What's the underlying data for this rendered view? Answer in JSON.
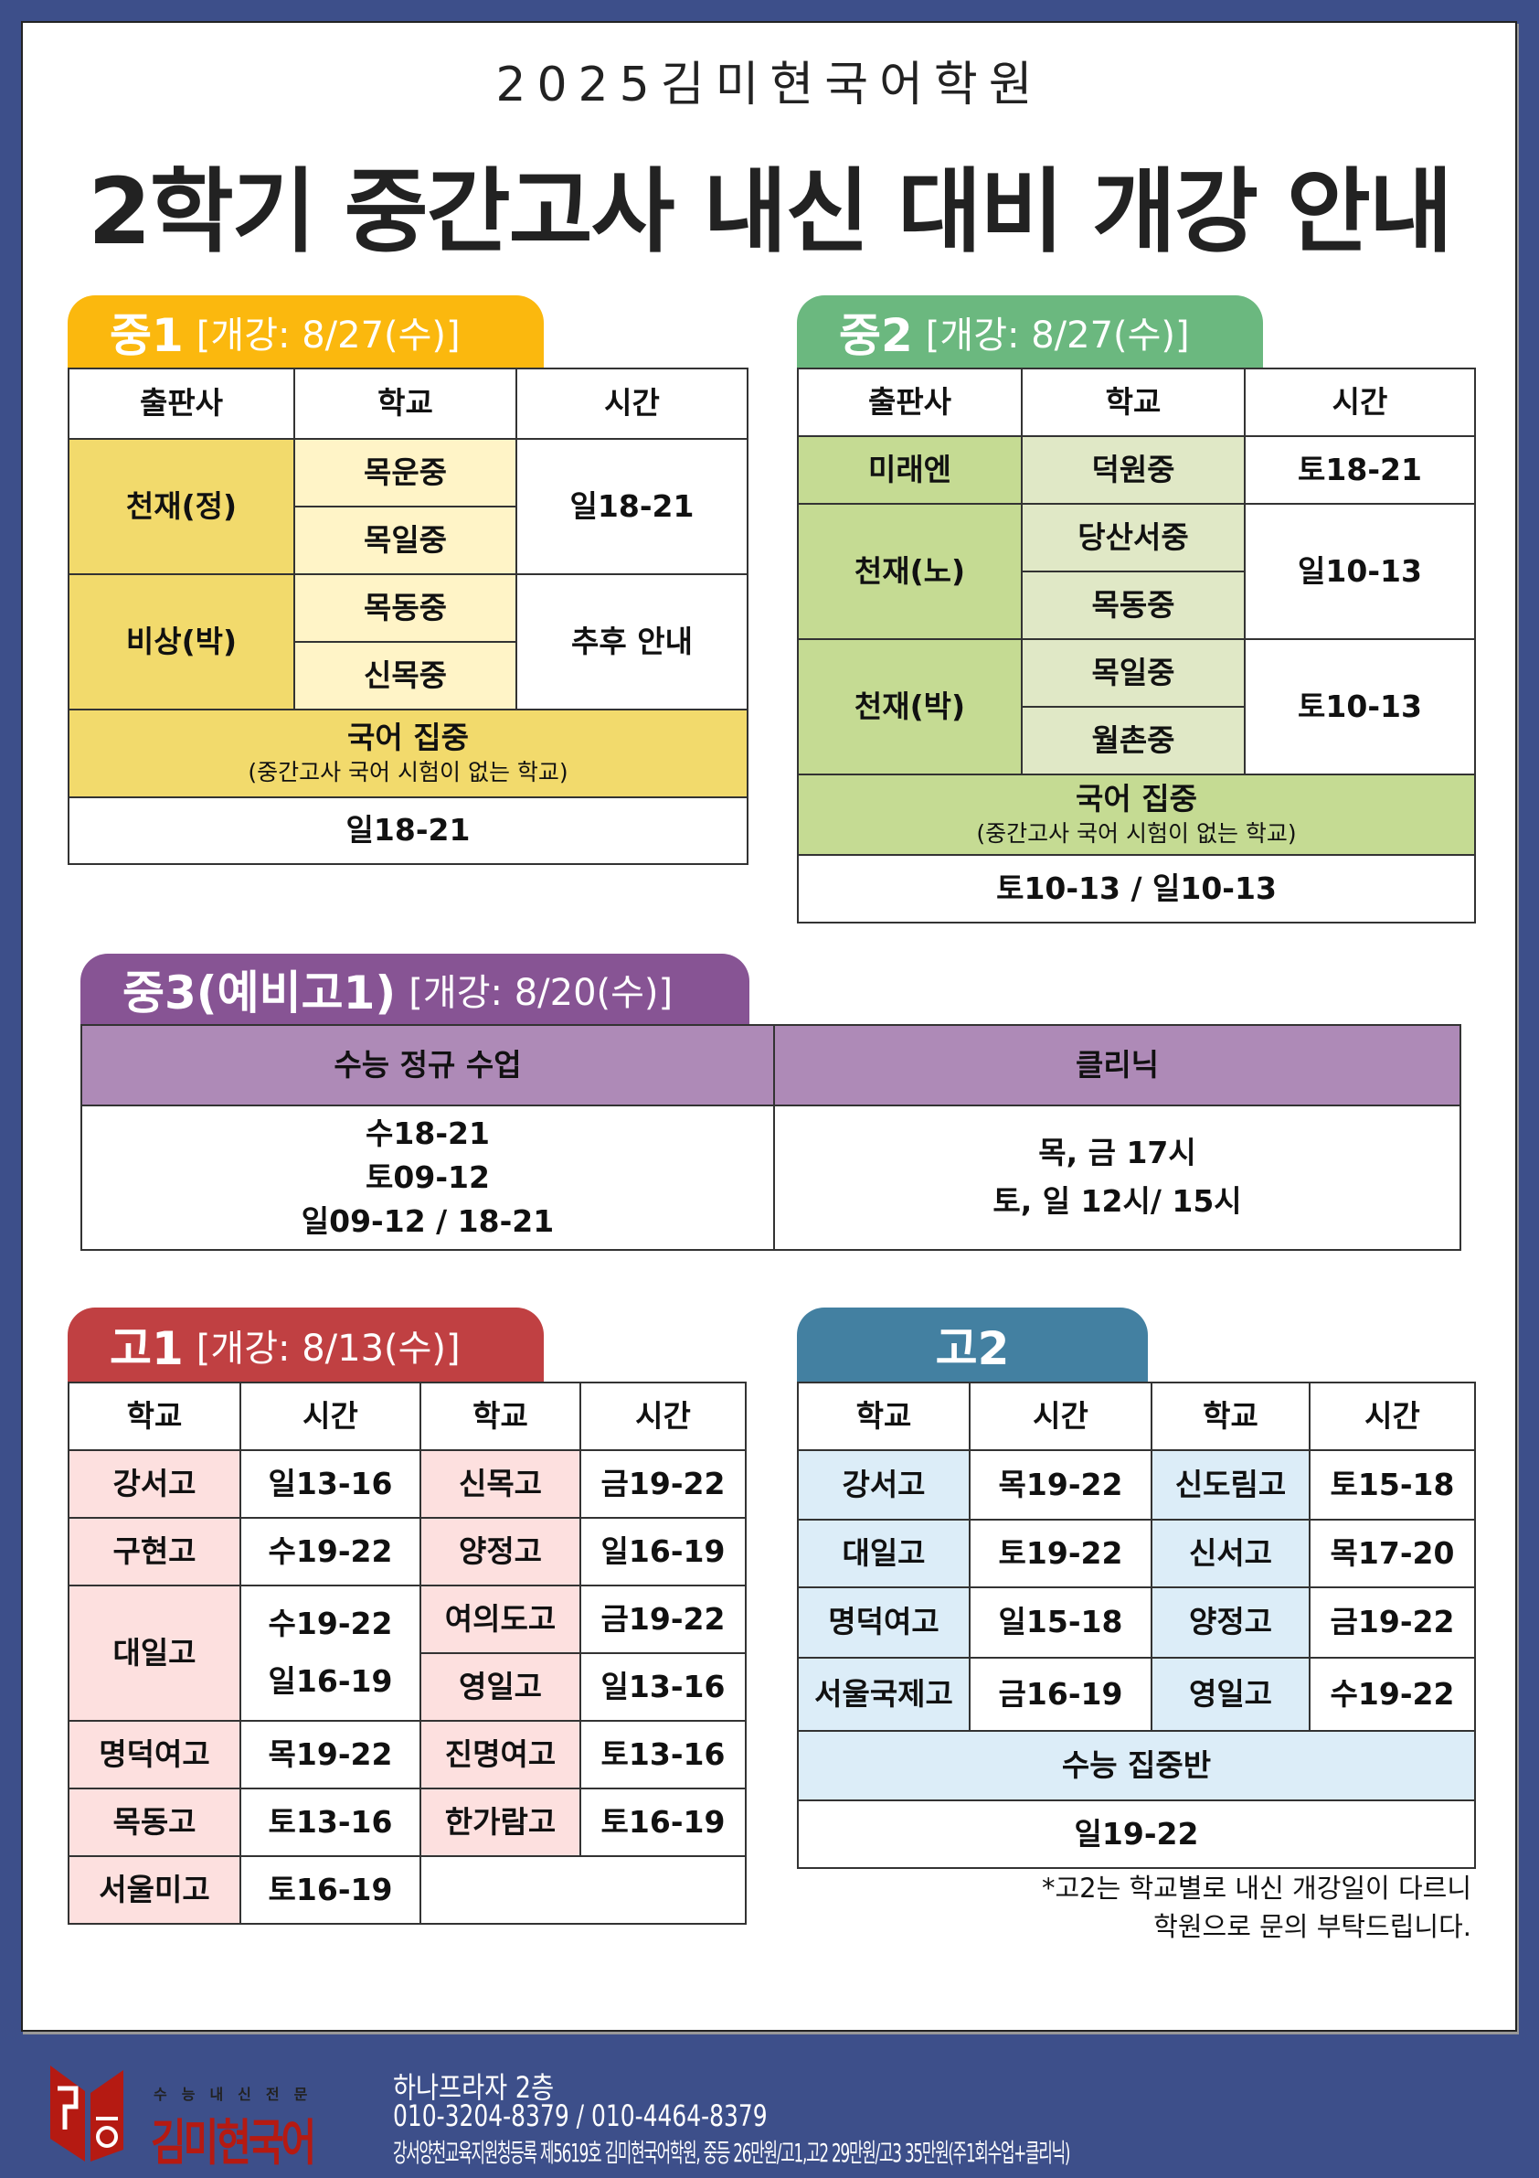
{
  "header": {
    "academy": "2025김미현국어학원",
    "title": "2학기 중간고사 내신 대비 개강 안내"
  },
  "m1": {
    "grade": "중1",
    "open": "[개강: 8/27(수)]",
    "color": "#fbb80e",
    "headers": [
      "출판사",
      "학교",
      "시간"
    ],
    "groups": [
      {
        "publisher": "천재(정)",
        "schools": [
          "목운중",
          "목일중"
        ],
        "time": "일18-21"
      },
      {
        "publisher": "비상(박)",
        "schools": [
          "목동중",
          "신목중"
        ],
        "time": "추후 안내"
      }
    ],
    "focus": {
      "title": "국어 집중",
      "sub": "(중간고사 국어 시험이 없는 학교)",
      "time": "일18-21"
    }
  },
  "m2": {
    "grade": "중2",
    "open": "[개강: 8/27(수)]",
    "color": "#6bb87f",
    "headers": [
      "출판사",
      "학교",
      "시간"
    ],
    "groups": [
      {
        "publisher": "미래엔",
        "schools": [
          "덕원중"
        ],
        "time": "토18-21"
      },
      {
        "publisher": "천재(노)",
        "schools": [
          "당산서중",
          "목동중"
        ],
        "time": "일10-13"
      },
      {
        "publisher": "천재(박)",
        "schools": [
          "목일중",
          "월촌중"
        ],
        "time": "토10-13"
      }
    ],
    "focus": {
      "title": "국어 집중",
      "sub": "(중간고사 국어 시험이 없는 학교)",
      "time": "토10-13 / 일10-13"
    }
  },
  "m3": {
    "grade": "중3(예비고1)",
    "open": "[개강: 8/20(수)]",
    "color": "#875494",
    "headers": [
      "수능 정규 수업",
      "클리닉"
    ],
    "regular": [
      "수18-21",
      "토09-12",
      "일09-12 / 18-21"
    ],
    "clinic": [
      "목, 금 17시",
      "토, 일 12시/ 15시"
    ]
  },
  "h1": {
    "grade": "고1",
    "open": "[개강: 8/13(수)]",
    "color": "#c04042",
    "headers": [
      "학교",
      "시간",
      "학교",
      "시간"
    ],
    "left": [
      [
        "강서고",
        "일13-16"
      ],
      [
        "구현고",
        "수19-22"
      ],
      [
        "대일고",
        "수19-22",
        "일16-19"
      ],
      [
        "명덕여고",
        "목19-22"
      ],
      [
        "목동고",
        "토13-16"
      ],
      [
        "서울미고",
        "토16-19"
      ]
    ],
    "right": [
      [
        "신목고",
        "금19-22"
      ],
      [
        "양정고",
        "일16-19"
      ],
      [
        "여의도고",
        "금19-22"
      ],
      [
        "영일고",
        "일13-16"
      ],
      [
        "진명여고",
        "토13-16"
      ],
      [
        "한가람고",
        "토16-19"
      ]
    ]
  },
  "h2": {
    "grade": "고2",
    "color": "#4380a1",
    "headers": [
      "학교",
      "시간",
      "학교",
      "시간"
    ],
    "rows": [
      [
        "강서고",
        "목19-22",
        "신도림고",
        "토15-18"
      ],
      [
        "대일고",
        "토19-22",
        "신서고",
        "목17-20"
      ],
      [
        "명덕여고",
        "일15-18",
        "양정고",
        "금19-22"
      ],
      [
        "서울국제고",
        "금16-19",
        "영일고",
        "수19-22"
      ]
    ],
    "intensive": "수능 집중반",
    "intensive_time": "일19-22",
    "note": [
      "*고2는 학교별로 내신 개강일이 다르니",
      "학원으로 문의 부탁드립니다."
    ]
  },
  "footer": {
    "logo_tagline": "수능내신전문",
    "logo_name": "김미현국어",
    "address": "하나프라자 2층",
    "phone": "010-3204-8379 / 010-4464-8379",
    "registration": "강서양천교육지원청등록 제5619호 김미현국어학원, 중등 26만원/고1,고2 29만원/고3 35만원(주1회수업+클리닉)"
  }
}
